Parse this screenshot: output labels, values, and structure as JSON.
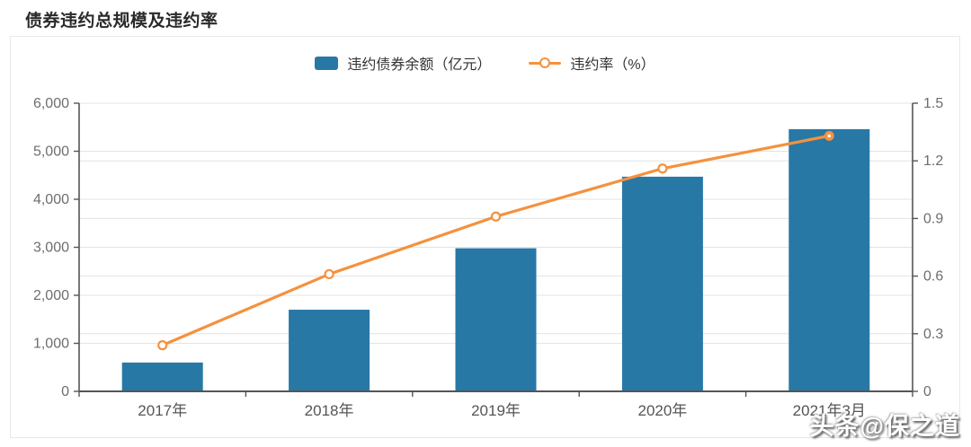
{
  "page": {
    "title": "债券违约总规模及违约率"
  },
  "watermark": {
    "text": "头条@保之道"
  },
  "colors": {
    "bar": "#2878a6",
    "line": "#f5913d",
    "grid": "#e3e3e3",
    "axis_line": "#555555",
    "left_tick_label": "#6e6e6e",
    "right_tick_label": "#6e6e6e",
    "x_tick_label": "#555555",
    "title": "#2a2a2a",
    "card_border": "#e7e7ee",
    "background": "#ffffff"
  },
  "legend": {
    "items": [
      {
        "label": "违约债券余额（亿元）",
        "type": "bar"
      },
      {
        "label": "违约率（%）",
        "type": "line"
      }
    ],
    "position": "top-center"
  },
  "chart_data": {
    "type": "bar",
    "subtype": "bar+line dual axis",
    "title": "债券违约总规模及违约率",
    "categories": [
      "2017年",
      "2018年",
      "2019年",
      "2020年",
      "2021年3月"
    ],
    "series": [
      {
        "name": "违约债券余额（亿元）",
        "type": "bar",
        "axis": "left",
        "values": [
          600,
          1700,
          2980,
          4470,
          5460
        ]
      },
      {
        "name": "违约率（%）",
        "type": "line",
        "axis": "right",
        "values": [
          0.24,
          0.61,
          0.91,
          1.16,
          1.33
        ],
        "last_point_emphasized": true
      }
    ],
    "left_axis": {
      "min": 0,
      "max": 6000,
      "step": 1000,
      "tick_labels": [
        "0",
        "1,000",
        "2,000",
        "3,000",
        "4,000",
        "5,000",
        "6,000"
      ]
    },
    "right_axis": {
      "min": 0,
      "max": 1.5,
      "step": 0.3,
      "tick_labels": [
        "0",
        "0.3",
        "0.6",
        "0.9",
        "1.2",
        "1.5"
      ]
    },
    "grid": true,
    "legend_position": "top-center",
    "xlabel": "",
    "ylabel_left": "违约债券余额（亿元）",
    "ylabel_right": "违约率（%）"
  }
}
